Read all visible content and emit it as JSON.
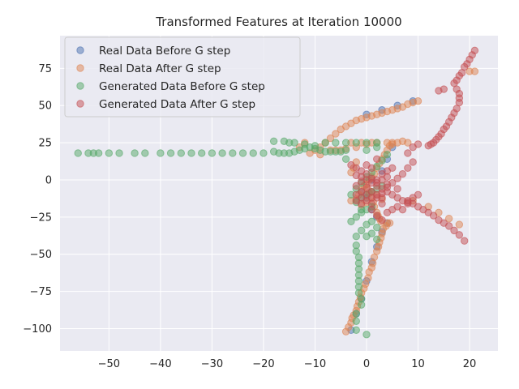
{
  "chart_data": {
    "type": "scatter",
    "title": "Transformed Features at Iteration 10000",
    "xlabel": "",
    "ylabel": "",
    "xlim": [
      -59.5,
      25.5
    ],
    "ylim": [
      -115,
      97
    ],
    "xticks": [
      -50,
      -40,
      -30,
      -20,
      -10,
      0,
      10,
      20
    ],
    "yticks": [
      -100,
      -75,
      -50,
      -25,
      0,
      25,
      50,
      75
    ],
    "grid": true,
    "legend_position": "top-left",
    "series": [
      {
        "name": "Real Data Before G step",
        "color": "#4c72b0",
        "points": [
          [
            -3,
            -101
          ],
          [
            -2,
            -90
          ],
          [
            -1,
            -80
          ],
          [
            0,
            -68
          ],
          [
            1,
            -55
          ],
          [
            2,
            -45
          ],
          [
            3,
            -35
          ],
          [
            4,
            -29
          ],
          [
            2,
            -25
          ],
          [
            1,
            -20
          ],
          [
            0,
            -12
          ],
          [
            -1,
            -8
          ],
          [
            1,
            0
          ],
          [
            3,
            6
          ],
          [
            4,
            14
          ],
          [
            5,
            22
          ],
          [
            0,
            44
          ],
          [
            3,
            47
          ],
          [
            6,
            50
          ],
          [
            9,
            53
          ]
        ]
      },
      {
        "name": "Real Data After G step",
        "color": "#dd8452",
        "points": [
          [
            -4,
            -102
          ],
          [
            -3.5,
            -99
          ],
          [
            -3,
            -96
          ],
          [
            -2.8,
            -93
          ],
          [
            -2.5,
            -91
          ],
          [
            -2,
            -88
          ],
          [
            -1.8,
            -85
          ],
          [
            -1.5,
            -82
          ],
          [
            -1.2,
            -79
          ],
          [
            -1,
            -76
          ],
          [
            -0.5,
            -73
          ],
          [
            -0.2,
            -70
          ],
          [
            0.3,
            -66
          ],
          [
            0.5,
            -62
          ],
          [
            1,
            -59
          ],
          [
            1.2,
            -56
          ],
          [
            1.5,
            -52
          ],
          [
            2,
            -48
          ],
          [
            2.3,
            -45
          ],
          [
            2.5,
            -42
          ],
          [
            2.8,
            -39
          ],
          [
            3,
            -36
          ],
          [
            3.2,
            -33
          ],
          [
            3.8,
            -31
          ],
          [
            4,
            -29
          ],
          [
            4.5,
            -29
          ],
          [
            2.8,
            -28
          ],
          [
            2.5,
            -26
          ],
          [
            2.2,
            -24
          ],
          [
            2,
            -22
          ],
          [
            1.5,
            -18
          ],
          [
            1.3,
            -15
          ],
          [
            1,
            -12
          ],
          [
            0.5,
            -9
          ],
          [
            0.2,
            -6
          ],
          [
            0,
            -3
          ],
          [
            0.5,
            0
          ],
          [
            1,
            2
          ],
          [
            1.5,
            4
          ],
          [
            -2,
            -13
          ],
          [
            -1.5,
            -10
          ],
          [
            -1,
            -7
          ],
          [
            -0.5,
            -4
          ],
          [
            -3,
            5
          ],
          [
            -2.5,
            8
          ],
          [
            -2,
            12
          ],
          [
            2,
            8
          ],
          [
            2.5,
            11
          ],
          [
            3,
            14
          ],
          [
            3.5,
            17
          ],
          [
            4,
            20
          ],
          [
            4.5,
            23
          ],
          [
            5,
            25
          ],
          [
            1,
            -8
          ],
          [
            2,
            -10
          ],
          [
            0,
            -15
          ],
          [
            -1,
            -17
          ],
          [
            3,
            -13
          ],
          [
            -3,
            -14
          ],
          [
            -10,
            20
          ],
          [
            -9,
            22
          ],
          [
            -8,
            25
          ],
          [
            -7,
            28
          ],
          [
            -6,
            31
          ],
          [
            -5,
            34
          ],
          [
            -4,
            36
          ],
          [
            -3,
            38
          ],
          [
            -2,
            40
          ],
          [
            -1,
            41
          ],
          [
            0,
            42
          ],
          [
            1,
            43
          ],
          [
            2,
            44
          ],
          [
            3,
            45
          ],
          [
            4,
            46
          ],
          [
            5,
            47
          ],
          [
            6,
            48
          ],
          [
            7,
            49
          ],
          [
            8,
            51
          ],
          [
            9,
            52
          ],
          [
            10,
            53
          ],
          [
            -7,
            20
          ],
          [
            -6,
            20
          ],
          [
            -5,
            20
          ],
          [
            -4,
            21
          ],
          [
            -2,
            22
          ],
          [
            0,
            24
          ],
          [
            2,
            25
          ],
          [
            4,
            25
          ],
          [
            6,
            25
          ],
          [
            8,
            25
          ],
          [
            -3,
            25
          ],
          [
            -1,
            25
          ],
          [
            1,
            25
          ],
          [
            5,
            24
          ],
          [
            7,
            26
          ],
          [
            9,
            -14
          ],
          [
            12,
            -18
          ],
          [
            14,
            -22
          ],
          [
            16,
            -26
          ],
          [
            18,
            -30
          ],
          [
            20,
            73
          ],
          [
            21,
            73
          ],
          [
            -12,
            25
          ],
          [
            -13,
            22
          ],
          [
            -11,
            18
          ],
          [
            -9,
            17
          ]
        ]
      },
      {
        "name": "Generated Data Before G step",
        "color": "#55a868",
        "points": [
          [
            -56,
            18
          ],
          [
            -54,
            18
          ],
          [
            -53,
            18
          ],
          [
            -52,
            18
          ],
          [
            -50,
            18
          ],
          [
            -48,
            18
          ],
          [
            -45,
            18
          ],
          [
            -43,
            18
          ],
          [
            -40,
            18
          ],
          [
            -38,
            18
          ],
          [
            -36,
            18
          ],
          [
            -34,
            18
          ],
          [
            -32,
            18
          ],
          [
            -30,
            18
          ],
          [
            -28,
            18
          ],
          [
            -26,
            18
          ],
          [
            -24,
            18
          ],
          [
            -22,
            18
          ],
          [
            -20,
            18
          ],
          [
            -18,
            19
          ],
          [
            -17,
            18
          ],
          [
            -16,
            18
          ],
          [
            -15,
            18
          ],
          [
            -14,
            19
          ],
          [
            -13,
            20
          ],
          [
            -12,
            21
          ],
          [
            -11,
            22
          ],
          [
            -10,
            21
          ],
          [
            -9,
            20
          ],
          [
            -8,
            19
          ],
          [
            -7,
            19
          ],
          [
            -6,
            19
          ],
          [
            -5,
            19
          ],
          [
            -4,
            20
          ],
          [
            -18,
            26
          ],
          [
            -16,
            26
          ],
          [
            -15,
            25
          ],
          [
            -14,
            25
          ],
          [
            -12,
            24
          ],
          [
            -10,
            23
          ],
          [
            -8,
            25
          ],
          [
            -6,
            25
          ],
          [
            -4,
            25
          ],
          [
            -2,
            25
          ],
          [
            0,
            25
          ],
          [
            2,
            25
          ],
          [
            -3,
            -28
          ],
          [
            -2,
            -25
          ],
          [
            -1,
            -22
          ],
          [
            0,
            -20
          ],
          [
            1,
            -18
          ],
          [
            -2,
            -15
          ],
          [
            -1,
            -12
          ],
          [
            0,
            -10
          ],
          [
            1,
            -8
          ],
          [
            2,
            -6
          ],
          [
            3,
            -4
          ],
          [
            0,
            -30
          ],
          [
            -1,
            -34
          ],
          [
            0,
            -38
          ],
          [
            1,
            -36
          ],
          [
            2,
            -40
          ],
          [
            -2,
            -44
          ],
          [
            -2,
            -48
          ],
          [
            -1.5,
            -52
          ],
          [
            -1.5,
            -56
          ],
          [
            -1.5,
            -60
          ],
          [
            -1.5,
            -64
          ],
          [
            -1.5,
            -68
          ],
          [
            -1.5,
            -72
          ],
          [
            -1.5,
            -76
          ],
          [
            -1,
            -80
          ],
          [
            -1,
            -84
          ],
          [
            -2,
            -90
          ],
          [
            -2,
            -95
          ],
          [
            -2,
            -101
          ],
          [
            0,
            -104
          ],
          [
            -3,
            -10
          ],
          [
            -2,
            -6
          ],
          [
            -1,
            -2
          ],
          [
            0,
            2
          ],
          [
            1,
            5
          ],
          [
            2,
            9
          ],
          [
            3,
            13
          ],
          [
            4,
            17
          ],
          [
            0,
            20
          ],
          [
            2,
            22
          ],
          [
            -4,
            14
          ],
          [
            -2,
            -38
          ],
          [
            1,
            -28
          ],
          [
            2,
            -32
          ],
          [
            -1,
            -20
          ]
        ]
      },
      {
        "name": "Generated Data After G step",
        "color": "#c44e52",
        "points": [
          [
            21,
            87
          ],
          [
            20.5,
            84
          ],
          [
            20,
            81
          ],
          [
            19.5,
            78
          ],
          [
            19,
            76
          ],
          [
            18.5,
            72
          ],
          [
            18,
            70
          ],
          [
            17.5,
            67
          ],
          [
            17,
            65
          ],
          [
            17.5,
            61
          ],
          [
            18,
            58
          ],
          [
            18,
            55
          ],
          [
            18,
            52
          ],
          [
            17.5,
            48
          ],
          [
            17,
            45
          ],
          [
            16.5,
            42
          ],
          [
            16,
            39
          ],
          [
            15.5,
            36
          ],
          [
            15,
            34
          ],
          [
            14.5,
            31
          ],
          [
            14,
            29
          ],
          [
            13.5,
            27
          ],
          [
            13,
            25
          ],
          [
            12.5,
            24
          ],
          [
            12,
            23
          ],
          [
            14,
            60
          ],
          [
            15,
            61
          ],
          [
            8,
            -14
          ],
          [
            9,
            -16
          ],
          [
            10,
            -18
          ],
          [
            11,
            -20
          ],
          [
            12,
            -22
          ],
          [
            13,
            -24
          ],
          [
            14,
            -27
          ],
          [
            15,
            -29
          ],
          [
            16,
            -31
          ],
          [
            17,
            -34
          ],
          [
            18,
            -37
          ],
          [
            19,
            -41
          ],
          [
            6,
            -12
          ],
          [
            7,
            -14
          ],
          [
            8,
            -15
          ],
          [
            5,
            -10
          ],
          [
            4,
            -8
          ],
          [
            3,
            -6
          ],
          [
            2,
            -4
          ],
          [
            1,
            -2
          ],
          [
            0,
            0
          ],
          [
            -1,
            2
          ],
          [
            -2,
            3
          ],
          [
            0,
            -5
          ],
          [
            1,
            -8
          ],
          [
            2,
            -10
          ],
          [
            3,
            -12
          ],
          [
            -1,
            -8
          ],
          [
            -2,
            -10
          ],
          [
            -1,
            -12
          ],
          [
            0,
            -14
          ],
          [
            1,
            -16
          ],
          [
            2,
            -12
          ],
          [
            3,
            -9
          ],
          [
            4,
            -5
          ],
          [
            5,
            -2
          ],
          [
            6,
            1
          ],
          [
            7,
            4
          ],
          [
            8,
            8
          ],
          [
            9,
            12
          ],
          [
            8,
            18
          ],
          [
            9,
            22
          ],
          [
            10,
            24
          ],
          [
            3,
            4
          ],
          [
            4,
            6
          ],
          [
            5,
            8
          ],
          [
            -1,
            6
          ],
          [
            -2,
            8
          ],
          [
            -3,
            10
          ],
          [
            0,
            10
          ],
          [
            2,
            14
          ],
          [
            1,
            -20
          ],
          [
            2,
            -24
          ],
          [
            3,
            -27
          ],
          [
            4,
            -22
          ],
          [
            6,
            -18
          ],
          [
            0,
            -10
          ],
          [
            -2,
            -14
          ],
          [
            1,
            -12
          ],
          [
            3,
            -16
          ],
          [
            5,
            -20
          ],
          [
            -1,
            -16
          ],
          [
            4,
            2
          ],
          [
            2,
            0
          ],
          [
            -2,
            -4
          ],
          [
            0,
            4
          ],
          [
            1,
            8
          ],
          [
            7,
            -20
          ],
          [
            8,
            -16
          ],
          [
            9,
            -12
          ],
          [
            10,
            -10
          ],
          [
            6,
            -6
          ],
          [
            2,
            -2
          ],
          [
            3,
            0
          ],
          [
            4,
            -3
          ],
          [
            -1,
            -1
          ],
          [
            1,
            1
          ]
        ]
      }
    ]
  }
}
